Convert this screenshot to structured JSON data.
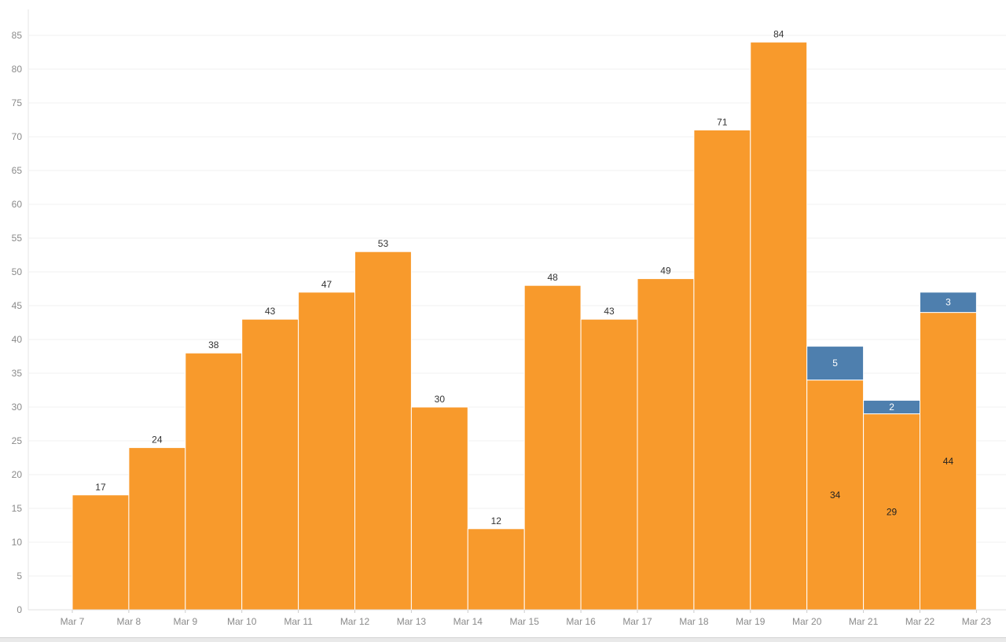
{
  "chart_data": {
    "type": "bar",
    "stacked": true,
    "title": "",
    "xlabel": "",
    "ylabel": "",
    "ylim": [
      0,
      85
    ],
    "y_ticks": [
      0,
      5,
      10,
      15,
      20,
      25,
      30,
      35,
      40,
      45,
      50,
      55,
      60,
      65,
      70,
      75,
      80,
      85
    ],
    "x_ticks": [
      "Mar 7",
      "Mar 8",
      "Mar 9",
      "Mar 10",
      "Mar 11",
      "Mar 12",
      "Mar 13",
      "Mar 14",
      "Mar 15",
      "Mar 16",
      "Mar 17",
      "Mar 18",
      "Mar 19",
      "Mar 20",
      "Mar 21",
      "Mar 22",
      "Mar 23"
    ],
    "grid": "horizontal",
    "legend": "none",
    "series": [
      {
        "color": "#f89a2c",
        "values": [
          17,
          24,
          38,
          43,
          47,
          53,
          30,
          12,
          48,
          43,
          49,
          71,
          84,
          34,
          29,
          44
        ]
      },
      {
        "color": "#4e7fae",
        "values": [
          0,
          0,
          0,
          0,
          0,
          0,
          0,
          0,
          0,
          0,
          0,
          0,
          0,
          5,
          2,
          3
        ]
      }
    ],
    "data_labels": [
      [
        "17",
        "24",
        "38",
        "43",
        "47",
        "53",
        "30",
        "12",
        "48",
        "43",
        "49",
        "71",
        "84",
        "34",
        "29",
        "44"
      ],
      [
        "",
        "",
        "",
        "",
        "",
        "",
        "",
        "",
        "",
        "",
        "",
        "",
        "",
        "5",
        "2",
        "3"
      ]
    ]
  }
}
